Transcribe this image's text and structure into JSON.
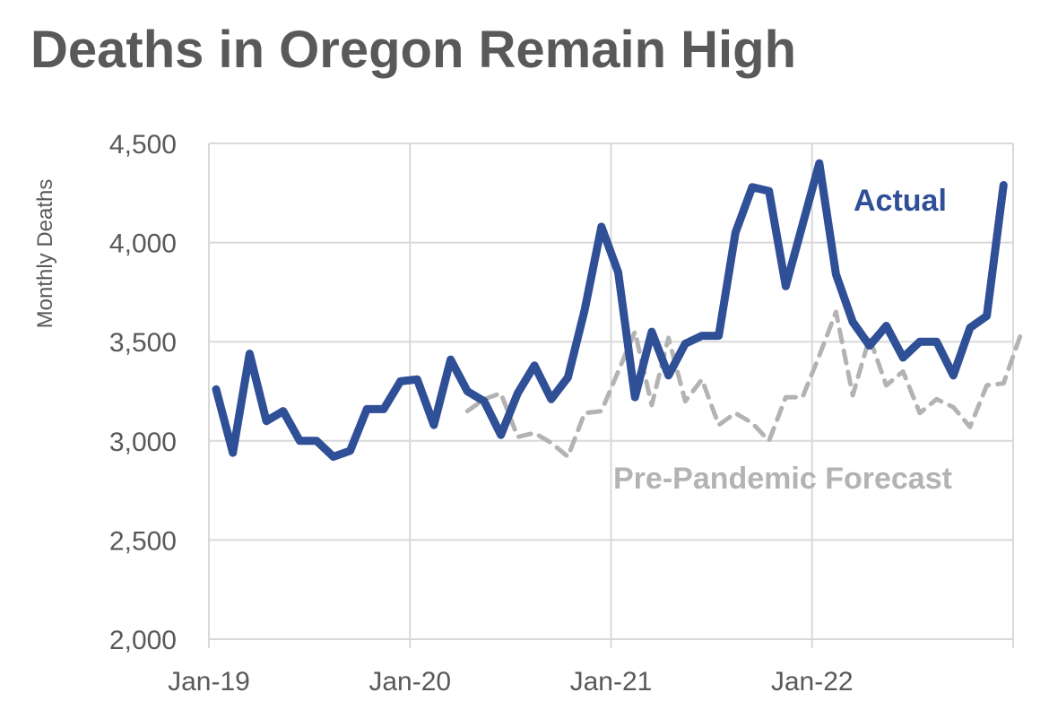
{
  "chart_data": {
    "type": "line",
    "title": "Deaths in Oregon Remain High",
    "xlabel": "",
    "ylabel": "Monthly Deaths",
    "ylim": [
      2000,
      4500
    ],
    "yticks": [
      2000,
      2500,
      3000,
      3500,
      4000,
      4500
    ],
    "ytick_labels": [
      "2,000",
      "2,500",
      "3,000",
      "3,500",
      "4,000",
      "4,500"
    ],
    "xtick_labels": [
      "Jan-19",
      "Jan-20",
      "Jan-21",
      "Jan-22"
    ],
    "xtick_indices": [
      0,
      12,
      24,
      36
    ],
    "x_count": 48,
    "grid": true,
    "series": [
      {
        "name": "Actual",
        "color": "#2F4F96",
        "style": "solid",
        "start_index": 0,
        "values": [
          3260,
          2940,
          3440,
          3100,
          3150,
          3000,
          3000,
          2920,
          2950,
          3160,
          3160,
          3300,
          3310,
          3080,
          3410,
          3250,
          3200,
          3030,
          3240,
          3380,
          3210,
          3320,
          3660,
          4080,
          3850,
          3220,
          3550,
          3330,
          3490,
          3530,
          3530,
          4050,
          4280,
          4260,
          3780,
          4090,
          4400,
          3840,
          3600,
          3480,
          3580,
          3420,
          3500,
          3500,
          3330,
          3570,
          3630,
          4290
        ]
      },
      {
        "name": "Pre-Pandemic Forecast",
        "color": "#b3b3b3",
        "style": "dashed",
        "start_index": 15,
        "values": [
          3150,
          3210,
          3240,
          3020,
          3040,
          2990,
          2920,
          3140,
          3150,
          3350,
          3550,
          3180,
          3520,
          3200,
          3310,
          3080,
          3140,
          3090,
          3000,
          3220,
          3220,
          3430,
          3650,
          3230,
          3520,
          3280,
          3350,
          3140,
          3210,
          3170,
          3070,
          3280,
          3290,
          3530
        ]
      }
    ]
  }
}
